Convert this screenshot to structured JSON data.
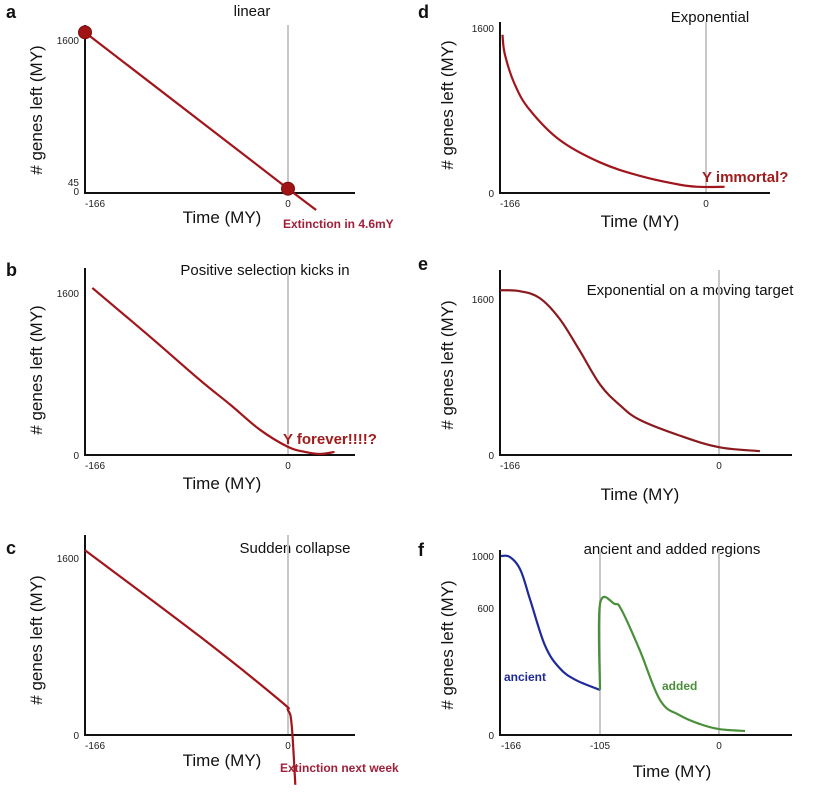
{
  "chart_data": [
    {
      "panel": "a",
      "type": "line",
      "title": "linear",
      "xlabel": "Time (MY)",
      "ylabel": "# genes left (MY)",
      "xticks": [
        -166,
        0
      ],
      "yticks": [
        0,
        45,
        1600
      ],
      "reference_line_x": 0,
      "series": [
        {
          "color": "#a0161c",
          "points": [
            [
              -166,
              1680
            ],
            [
              0,
              45
            ],
            [
              23,
              -178
            ]
          ]
        }
      ],
      "markers": [
        [
          -166,
          1680
        ],
        [
          0,
          45
        ]
      ],
      "annotations": [
        {
          "text": "Extinction in 4.6mY",
          "color": "#a0203a"
        }
      ]
    },
    {
      "panel": "b",
      "type": "line",
      "title": "Positive selection kicks in",
      "xlabel": "Time (MY)",
      "ylabel": "# genes left (MY)",
      "xticks": [
        -166,
        0
      ],
      "yticks": [
        0,
        1600
      ],
      "reference_line_x": 0,
      "series": [
        {
          "color": "#a0161c",
          "points": [
            [
              -160,
              1650
            ],
            [
              -113,
              1170
            ],
            [
              -72,
              740
            ],
            [
              -47,
              495
            ],
            [
              -23,
              250
            ],
            [
              0,
              80
            ],
            [
              14,
              30
            ],
            [
              26,
              10
            ],
            [
              38,
              30
            ]
          ]
        }
      ],
      "annotations": [
        {
          "text": "Y forever!!!!?",
          "color": "#a01c1c"
        }
      ]
    },
    {
      "panel": "c",
      "type": "line",
      "title": "Sudden collapse",
      "xlabel": "Time (MY)",
      "ylabel": "# genes left (MY)",
      "xticks": [
        -166,
        0
      ],
      "yticks": [
        0,
        1600
      ],
      "reference_line_x": 0,
      "series": [
        {
          "color": "#a0161c",
          "points": [
            [
              -166,
              1670
            ],
            [
              -72,
              890
            ],
            [
              -7,
              315
            ],
            [
              0,
              225
            ],
            [
              3,
              90
            ],
            [
              6,
              -450
            ]
          ]
        }
      ],
      "annotations": [
        {
          "text": "Extinction next week",
          "color": "#a0203a"
        }
      ]
    },
    {
      "panel": "d",
      "type": "line",
      "title": "Exponential",
      "xlabel": "Time (MY)",
      "ylabel": "# genes left (MY)",
      "xticks": [
        -166,
        0
      ],
      "yticks": [
        0,
        1600
      ],
      "reference_line_x": 0,
      "series": [
        {
          "color": "#a0161c",
          "points": [
            [
              -164,
              1535
            ],
            [
              -162,
              1340
            ],
            [
              -154,
              1050
            ],
            [
              -142,
              805
            ],
            [
              -118,
              515
            ],
            [
              -86,
              300
            ],
            [
              -53,
              165
            ],
            [
              -21,
              80
            ],
            [
              -5,
              60
            ],
            [
              15,
              60
            ]
          ]
        }
      ],
      "annotations": [
        {
          "text": "Y immortal?",
          "color": "#a01c1c"
        }
      ]
    },
    {
      "panel": "e",
      "type": "line",
      "title": "Exponential on a moving target",
      "xlabel": "Time (MY)",
      "ylabel": "# genes left (MY)",
      "xticks": [
        -166,
        0
      ],
      "yticks": [
        0,
        1600
      ],
      "reference_line_x": 0,
      "series": [
        {
          "color": "#8b1a1f",
          "points": [
            [
              -166,
              1690
            ],
            [
              -151,
              1680
            ],
            [
              -136,
              1610
            ],
            [
              -121,
              1400
            ],
            [
              -106,
              1080
            ],
            [
              -90,
              720
            ],
            [
              -75,
              510
            ],
            [
              -60,
              360
            ],
            [
              -30,
              200
            ],
            [
              0,
              80
            ],
            [
              31,
              40
            ]
          ]
        }
      ],
      "annotations": []
    },
    {
      "panel": "f",
      "type": "line",
      "title": "ancient and added regions",
      "xlabel": "Time (MY)",
      "ylabel": "# genes left (MY)",
      "xticks": [
        -166,
        -105,
        0
      ],
      "yticks": [
        0,
        600,
        1000
      ],
      "reference_lines_x": [
        -105,
        0
      ],
      "series": [
        {
          "name": "ancient",
          "color": "#1f2a9a",
          "points": [
            [
              -166,
              1000
            ],
            [
              -160.5,
              992
            ],
            [
              -154,
              892
            ],
            [
              -148,
              662
            ],
            [
              -139,
              425
            ],
            [
              -130,
              317
            ],
            [
              -120,
              260
            ],
            [
              -105,
              213
            ]
          ]
        },
        {
          "name": "added",
          "color": "#4a8f3a",
          "points": [
            [
              -105,
              213
            ],
            [
              -105,
              631
            ],
            [
              -92,
              631
            ],
            [
              -86,
              591
            ],
            [
              -70,
              402
            ],
            [
              -52,
              165
            ],
            [
              -35,
              94
            ],
            [
              -17,
              52
            ],
            [
              0,
              28
            ],
            [
              23,
              19
            ]
          ]
        }
      ],
      "annotations": [
        {
          "text": "ancient",
          "color": "#1f2a9a"
        },
        {
          "text": "added",
          "color": "#4a8f3a"
        }
      ]
    }
  ]
}
